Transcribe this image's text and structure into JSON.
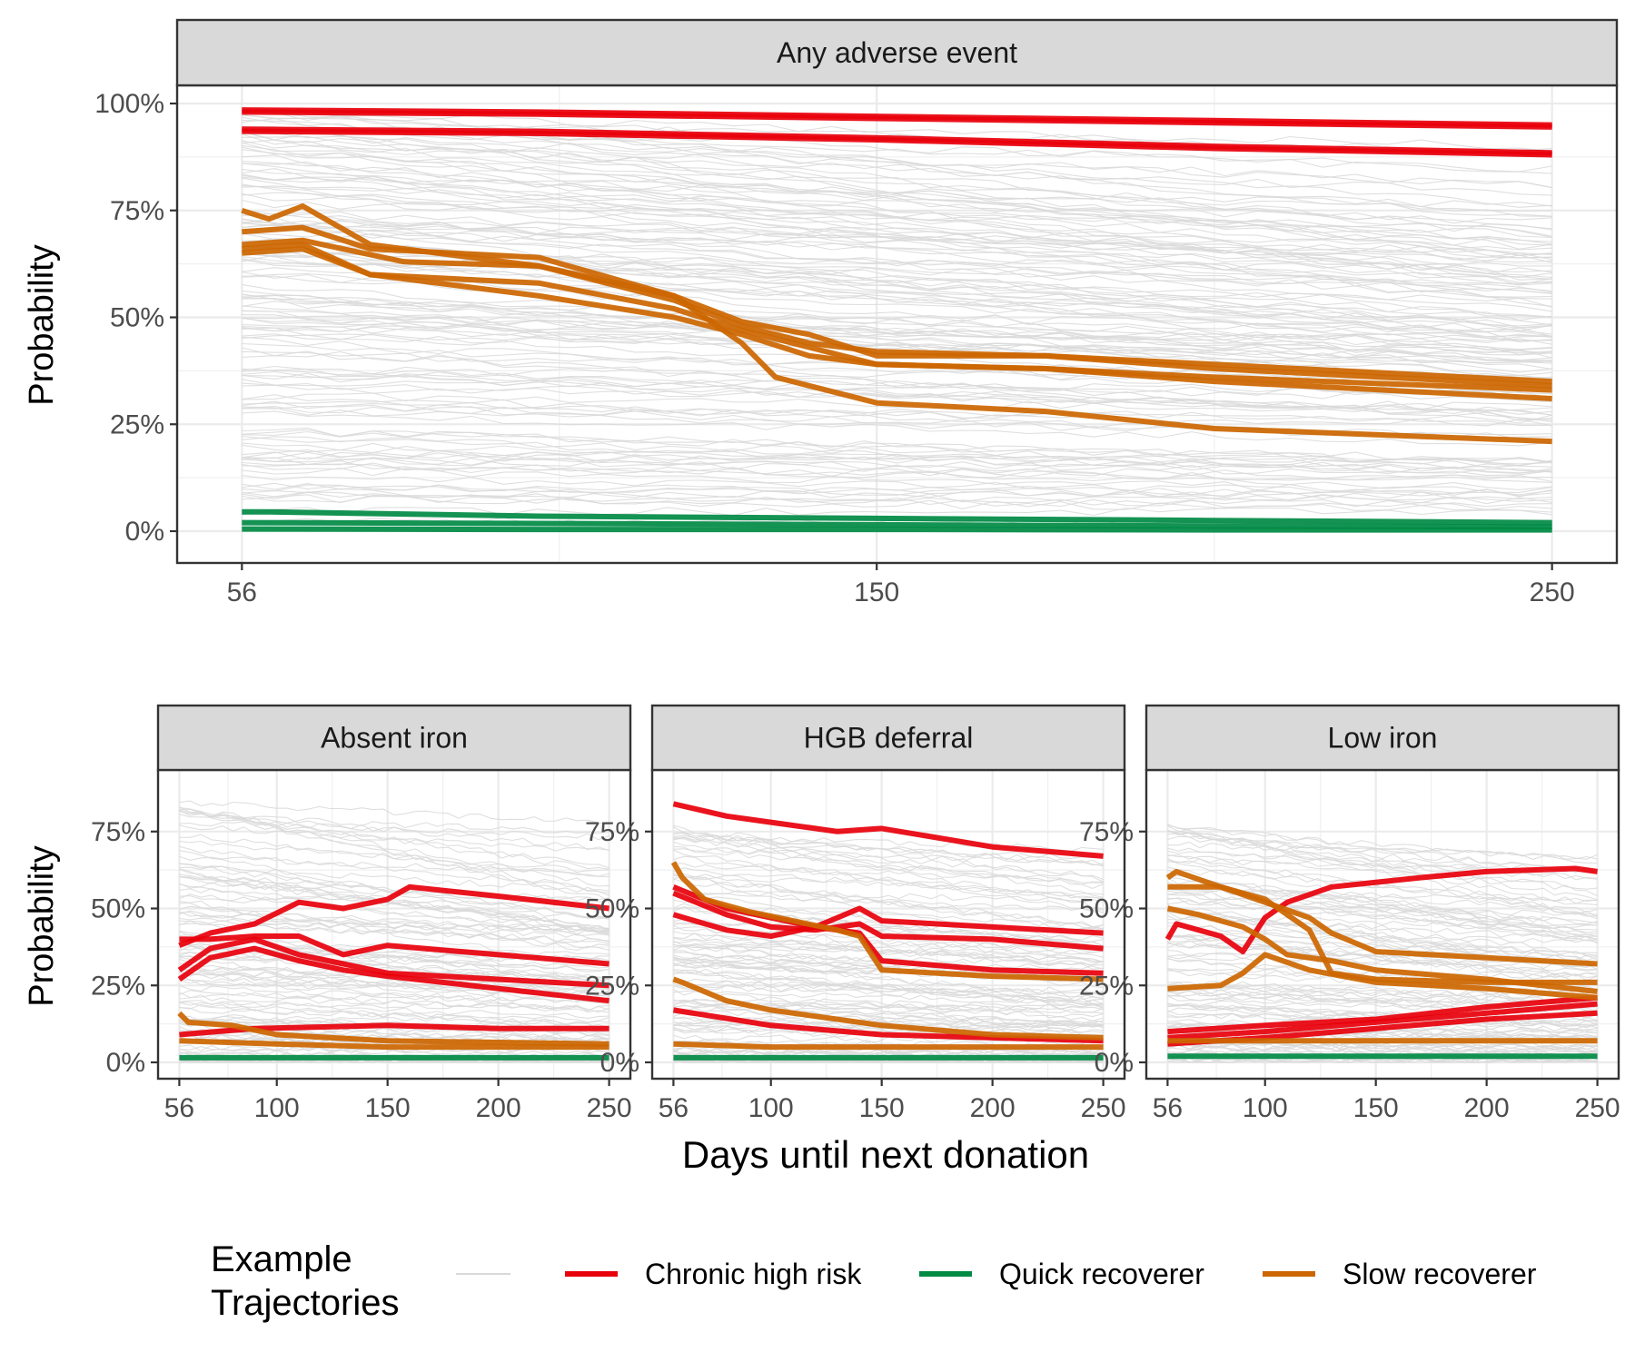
{
  "chart_data": {
    "type": "line",
    "x_label": "Days until next donation",
    "y_label": "Probability",
    "legend": {
      "title_lines": [
        "Example",
        "Trajectories"
      ],
      "entries": [
        {
          "name": "",
          "color": "#d9d9d9"
        },
        {
          "name": "Chronic high risk",
          "color": "#e8000b"
        },
        {
          "name": "Quick recoverer",
          "color": "#008a44"
        },
        {
          "name": "Slow recoverer",
          "color": "#cc6600"
        }
      ],
      "placement": "bottom"
    },
    "background_color": "#d9d9d9",
    "grid": true,
    "panels": [
      {
        "title": "Any adverse event",
        "xlim": [
          56,
          250
        ],
        "ylim": [
          0,
          1
        ],
        "xticks": [
          56,
          150,
          250
        ],
        "yticks": [
          0,
          0.25,
          0.5,
          0.75,
          1.0
        ],
        "ytick_labels": [
          "0%",
          "25%",
          "50%",
          "75%",
          "100%"
        ],
        "background_range": [
          0.0,
          0.98
        ],
        "series": [
          {
            "group": "Chronic high risk",
            "x": [
              56,
              100,
              150,
              200,
              250
            ],
            "y": [
              0.985,
              0.98,
              0.97,
              0.96,
              0.95
            ]
          },
          {
            "group": "Chronic high risk",
            "x": [
              56,
              100,
              150,
              200,
              250
            ],
            "y": [
              0.98,
              0.975,
              0.965,
              0.955,
              0.945
            ]
          },
          {
            "group": "Chronic high risk",
            "x": [
              56,
              100,
              150,
              200,
              250
            ],
            "y": [
              0.94,
              0.935,
              0.92,
              0.9,
              0.885
            ]
          },
          {
            "group": "Chronic high risk",
            "x": [
              56,
              100,
              150,
              200,
              250
            ],
            "y": [
              0.935,
              0.93,
              0.915,
              0.895,
              0.88
            ]
          },
          {
            "group": "Slow recoverer",
            "x": [
              56,
              60,
              65,
              75,
              100,
              120,
              130,
              140,
              150,
              175,
              200,
              250
            ],
            "y": [
              0.75,
              0.73,
              0.76,
              0.67,
              0.62,
              0.54,
              0.48,
              0.44,
              0.42,
              0.41,
              0.39,
              0.35
            ]
          },
          {
            "group": "Slow recoverer",
            "x": [
              56,
              65,
              75,
              100,
              120,
              130,
              140,
              150,
              175,
              200,
              250
            ],
            "y": [
              0.7,
              0.71,
              0.66,
              0.64,
              0.55,
              0.49,
              0.46,
              0.41,
              0.41,
              0.38,
              0.34
            ]
          },
          {
            "group": "Slow recoverer",
            "x": [
              56,
              65,
              75,
              100,
              120,
              130,
              140,
              150,
              175,
              200,
              250
            ],
            "y": [
              0.66,
              0.67,
              0.6,
              0.58,
              0.52,
              0.47,
              0.43,
              0.39,
              0.38,
              0.36,
              0.33
            ]
          },
          {
            "group": "Slow recoverer",
            "x": [
              56,
              65,
              75,
              100,
              120,
              130,
              140,
              150,
              175,
              200,
              250
            ],
            "y": [
              0.65,
              0.66,
              0.6,
              0.55,
              0.5,
              0.46,
              0.41,
              0.39,
              0.38,
              0.35,
              0.31
            ]
          },
          {
            "group": "Slow recoverer",
            "x": [
              56,
              65,
              80,
              100,
              120,
              130,
              135,
              150,
              175,
              200,
              250
            ],
            "y": [
              0.67,
              0.68,
              0.63,
              0.62,
              0.55,
              0.44,
              0.36,
              0.3,
              0.28,
              0.24,
              0.21
            ]
          },
          {
            "group": "Quick recoverer",
            "x": [
              56,
              60,
              100,
              150,
              200,
              250
            ],
            "y": [
              0.045,
              0.045,
              0.035,
              0.03,
              0.025,
              0.02
            ]
          },
          {
            "group": "Quick recoverer",
            "x": [
              56,
              100,
              150,
              200,
              250
            ],
            "y": [
              0.02,
              0.018,
              0.015,
              0.012,
              0.01
            ]
          },
          {
            "group": "Quick recoverer",
            "x": [
              56,
              100,
              150,
              200,
              250
            ],
            "y": [
              0.005,
              0.004,
              0.004,
              0.003,
              0.003
            ]
          }
        ]
      },
      {
        "title": "Absent iron",
        "xlim": [
          56,
          250
        ],
        "ylim": [
          0,
          0.95
        ],
        "xticks": [
          56,
          100,
          150,
          200,
          250
        ],
        "yticks": [
          0,
          0.25,
          0.5,
          0.75
        ],
        "ytick_labels": [
          "0%",
          "25%",
          "50%",
          "75%"
        ],
        "background_range": [
          0.0,
          0.85
        ],
        "series": [
          {
            "group": "Chronic high risk",
            "x": [
              56,
              70,
              90,
              110,
              130,
              150,
              160,
              200,
              250
            ],
            "y": [
              0.38,
              0.42,
              0.45,
              0.52,
              0.5,
              0.53,
              0.57,
              0.54,
              0.5
            ]
          },
          {
            "group": "Chronic high risk",
            "x": [
              56,
              70,
              90,
              110,
              130,
              150,
              200,
              250
            ],
            "y": [
              0.4,
              0.4,
              0.41,
              0.41,
              0.35,
              0.38,
              0.35,
              0.32
            ]
          },
          {
            "group": "Chronic high risk",
            "x": [
              56,
              70,
              90,
              110,
              130,
              150,
              200,
              250
            ],
            "y": [
              0.3,
              0.37,
              0.4,
              0.35,
              0.32,
              0.29,
              0.27,
              0.25
            ]
          },
          {
            "group": "Chronic high risk",
            "x": [
              56,
              70,
              90,
              110,
              130,
              150,
              200,
              250
            ],
            "y": [
              0.27,
              0.34,
              0.37,
              0.33,
              0.3,
              0.28,
              0.24,
              0.2
            ]
          },
          {
            "group": "Chronic high risk",
            "x": [
              56,
              90,
              150,
              200,
              250
            ],
            "y": [
              0.09,
              0.11,
              0.12,
              0.11,
              0.11
            ]
          },
          {
            "group": "Slow recoverer",
            "x": [
              56,
              60,
              80,
              100,
              150,
              250
            ],
            "y": [
              0.16,
              0.13,
              0.12,
              0.09,
              0.07,
              0.06
            ]
          },
          {
            "group": "Slow recoverer",
            "x": [
              56,
              100,
              150,
              250
            ],
            "y": [
              0.07,
              0.06,
              0.05,
              0.05
            ]
          },
          {
            "group": "Quick recoverer",
            "x": [
              56,
              250
            ],
            "y": [
              0.015,
              0.015
            ]
          }
        ]
      },
      {
        "title": "HGB deferral",
        "xlim": [
          56,
          250
        ],
        "ylim": [
          0,
          0.95
        ],
        "xticks": [
          56,
          100,
          150,
          200,
          250
        ],
        "yticks": [
          0,
          0.25,
          0.5,
          0.75
        ],
        "ytick_labels": [
          "0%",
          "25%",
          "50%",
          "75%"
        ],
        "background_range": [
          0.0,
          0.8
        ],
        "series": [
          {
            "group": "Chronic high risk",
            "x": [
              56,
              80,
              100,
              130,
              150,
              200,
              250
            ],
            "y": [
              0.84,
              0.8,
              0.78,
              0.75,
              0.76,
              0.7,
              0.67
            ]
          },
          {
            "group": "Chronic high risk",
            "x": [
              56,
              80,
              100,
              120,
              140,
              150,
              200,
              250
            ],
            "y": [
              0.57,
              0.5,
              0.47,
              0.44,
              0.5,
              0.46,
              0.44,
              0.42
            ]
          },
          {
            "group": "Chronic high risk",
            "x": [
              56,
              80,
              100,
              120,
              140,
              150,
              200,
              250
            ],
            "y": [
              0.55,
              0.48,
              0.44,
              0.43,
              0.45,
              0.41,
              0.4,
              0.37
            ]
          },
          {
            "group": "Chronic high risk",
            "x": [
              56,
              80,
              100,
              120,
              140,
              150,
              200,
              250
            ],
            "y": [
              0.48,
              0.43,
              0.41,
              0.44,
              0.42,
              0.33,
              0.3,
              0.29
            ]
          },
          {
            "group": "Chronic high risk",
            "x": [
              56,
              100,
              150,
              200,
              250
            ],
            "y": [
              0.17,
              0.12,
              0.09,
              0.08,
              0.07
            ]
          },
          {
            "group": "Slow recoverer",
            "x": [
              56,
              60,
              70,
              90,
              110,
              130,
              140,
              150,
              200,
              250
            ],
            "y": [
              0.65,
              0.6,
              0.53,
              0.49,
              0.46,
              0.43,
              0.41,
              0.3,
              0.28,
              0.27
            ]
          },
          {
            "group": "Slow recoverer",
            "x": [
              56,
              60,
              80,
              100,
              150,
              200,
              250
            ],
            "y": [
              0.27,
              0.26,
              0.2,
              0.17,
              0.12,
              0.09,
              0.08
            ]
          },
          {
            "group": "Slow recoverer",
            "x": [
              56,
              100,
              150,
              250
            ],
            "y": [
              0.06,
              0.05,
              0.05,
              0.05
            ]
          },
          {
            "group": "Quick recoverer",
            "x": [
              56,
              250
            ],
            "y": [
              0.015,
              0.015
            ]
          }
        ]
      },
      {
        "title": "Low iron",
        "xlim": [
          56,
          250
        ],
        "ylim": [
          0,
          0.95
        ],
        "xticks": [
          56,
          100,
          150,
          200,
          250
        ],
        "yticks": [
          0,
          0.25,
          0.5,
          0.75
        ],
        "ytick_labels": [
          "0%",
          "25%",
          "50%",
          "75%"
        ],
        "background_range": [
          0.0,
          0.8
        ],
        "series": [
          {
            "group": "Chronic high risk",
            "x": [
              56,
              60,
              80,
              90,
              100,
              110,
              130,
              170,
              200,
              240,
              250
            ],
            "y": [
              0.4,
              0.45,
              0.41,
              0.36,
              0.47,
              0.52,
              0.57,
              0.6,
              0.62,
              0.63,
              0.62
            ]
          },
          {
            "group": "Chronic high risk",
            "x": [
              56,
              100,
              150,
              200,
              250
            ],
            "y": [
              0.1,
              0.12,
              0.14,
              0.18,
              0.21
            ]
          },
          {
            "group": "Chronic high risk",
            "x": [
              56,
              100,
              150,
              200,
              250
            ],
            "y": [
              0.08,
              0.1,
              0.13,
              0.16,
              0.19
            ]
          },
          {
            "group": "Chronic high risk",
            "x": [
              56,
              100,
              150,
              200,
              250
            ],
            "y": [
              0.06,
              0.08,
              0.11,
              0.14,
              0.16
            ]
          },
          {
            "group": "Slow recoverer",
            "x": [
              56,
              60,
              80,
              100,
              120,
              130,
              150,
              200,
              250
            ],
            "y": [
              0.6,
              0.62,
              0.57,
              0.52,
              0.47,
              0.42,
              0.36,
              0.34,
              0.32
            ]
          },
          {
            "group": "Slow recoverer",
            "x": [
              56,
              80,
              100,
              120,
              130,
              150,
              200,
              250
            ],
            "y": [
              0.57,
              0.57,
              0.53,
              0.43,
              0.29,
              0.27,
              0.26,
              0.26
            ]
          },
          {
            "group": "Slow recoverer",
            "x": [
              56,
              70,
              90,
              100,
              110,
              130,
              150,
              200,
              250
            ],
            "y": [
              0.5,
              0.48,
              0.44,
              0.4,
              0.35,
              0.33,
              0.3,
              0.27,
              0.23
            ]
          },
          {
            "group": "Slow recoverer",
            "x": [
              56,
              80,
              90,
              100,
              120,
              150,
              200,
              250
            ],
            "y": [
              0.24,
              0.25,
              0.29,
              0.35,
              0.3,
              0.26,
              0.24,
              0.21
            ]
          },
          {
            "group": "Slow recoverer",
            "x": [
              56,
              100,
              150,
              250
            ],
            "y": [
              0.07,
              0.07,
              0.07,
              0.07
            ]
          },
          {
            "group": "Quick recoverer",
            "x": [
              56,
              250
            ],
            "y": [
              0.02,
              0.02
            ]
          }
        ]
      }
    ]
  }
}
